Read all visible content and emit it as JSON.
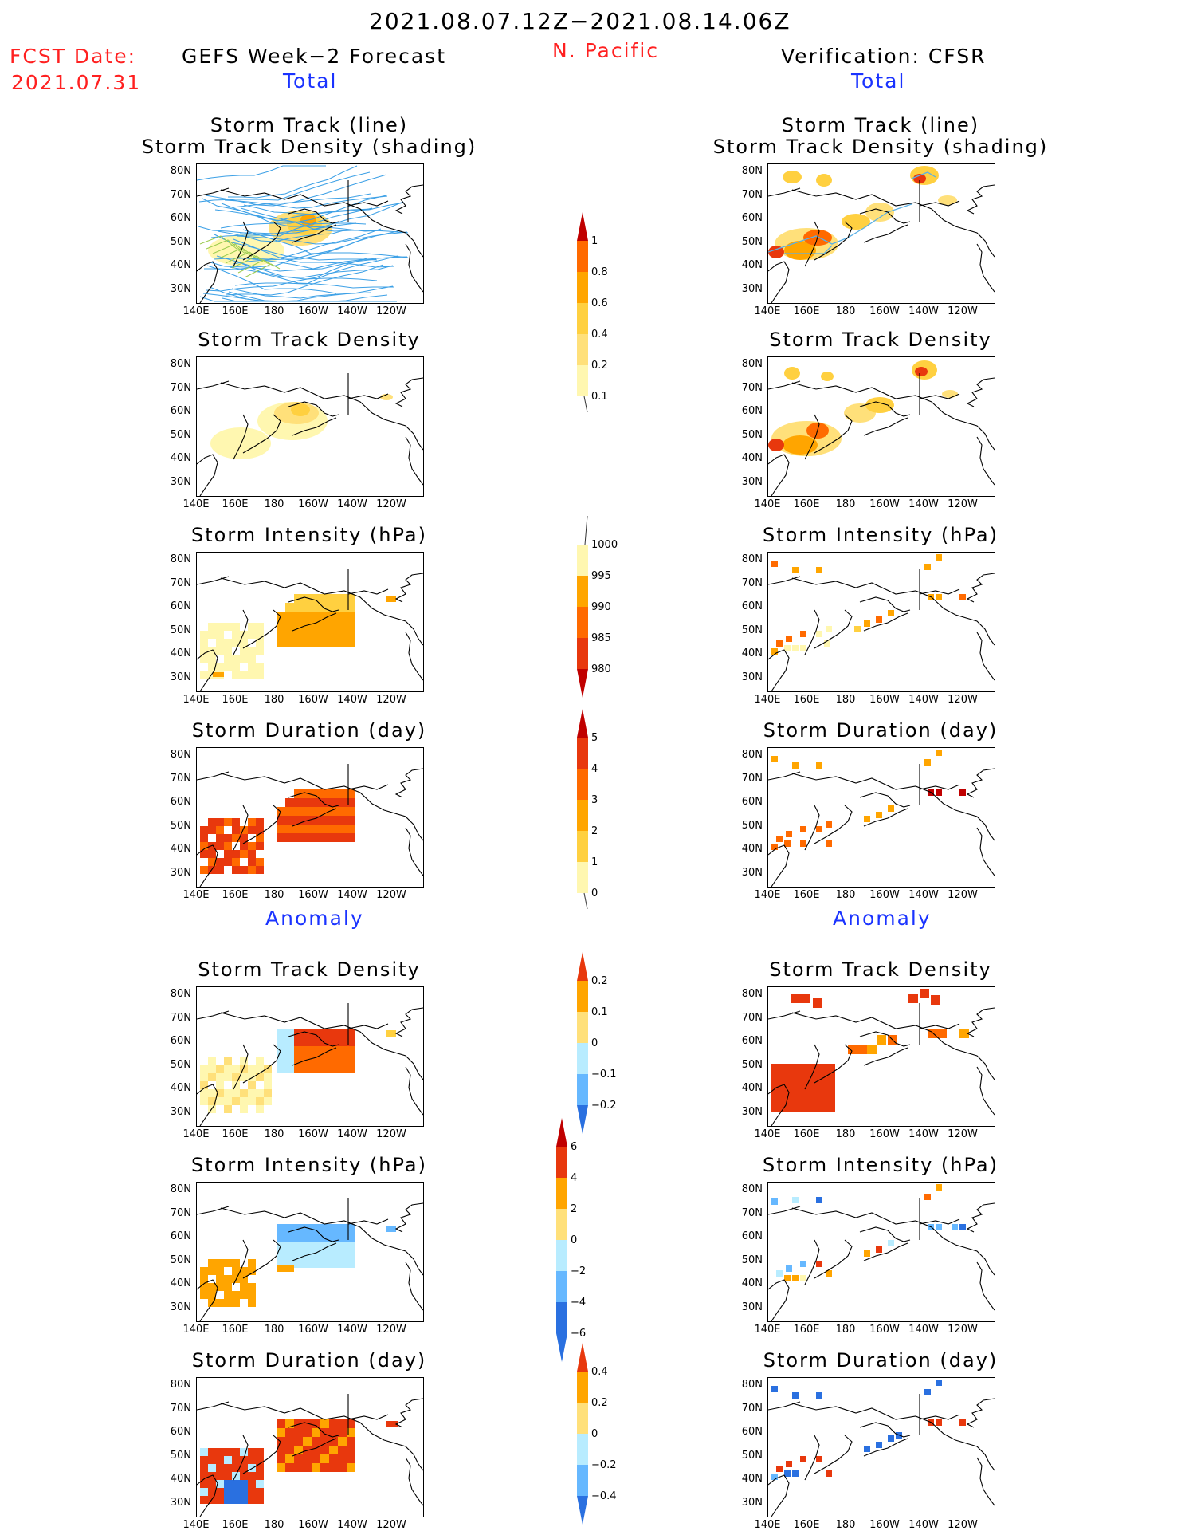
{
  "header": {
    "period": "2021.08.07.12Z−2021.08.14.06Z",
    "region": "N. Pacific",
    "fcst_label": "FCST Date:",
    "fcst_date": "2021.07.31",
    "left_title": "GEFS Week−2 Forecast",
    "right_title": "Verification: CFSR",
    "total": "Total",
    "anomaly": "Anomaly"
  },
  "panel_titles": {
    "track1": "Storm Track (line)",
    "track2": "Storm Track Density (shading)",
    "density": "Storm Track Density",
    "intensity": "Storm Intensity (hPa)",
    "duration": "Storm Duration (day)"
  },
  "axes": {
    "lat": [
      "80N",
      "70N",
      "60N",
      "50N",
      "40N",
      "30N"
    ],
    "lon": [
      "140E",
      "160E",
      "180",
      "160W",
      "140W",
      "120W"
    ]
  },
  "colorbars": {
    "density_total": [
      "1",
      "0.8",
      "0.6",
      "0.4",
      "0.2",
      "0.1"
    ],
    "intensity_total": [
      "1000",
      "995",
      "990",
      "985",
      "980"
    ],
    "duration_total": [
      "5",
      "4",
      "3",
      "2",
      "1",
      "0"
    ],
    "density_anom": [
      "0.2",
      "0.1",
      "0",
      "−0.1",
      "−0.2"
    ],
    "intensity_anom": [
      "6",
      "4",
      "2",
      "0",
      "−2",
      "−4",
      "−6"
    ],
    "duration_anom": [
      "0.4",
      "0.2",
      "0",
      "−0.2",
      "−0.4"
    ]
  },
  "colors": {
    "pale": "#fff7b0",
    "light": "#ffe07a",
    "yellow": "#ffd040",
    "orange": "#ffa500",
    "dorange": "#ff6a00",
    "red": "#e8380d",
    "dred": "#c00000",
    "track": "#3ca0e6",
    "lblue": "#b8ecff",
    "mblue": "#66b8ff",
    "blue": "#2a70e0",
    "dblue": "#1450c8"
  }
}
